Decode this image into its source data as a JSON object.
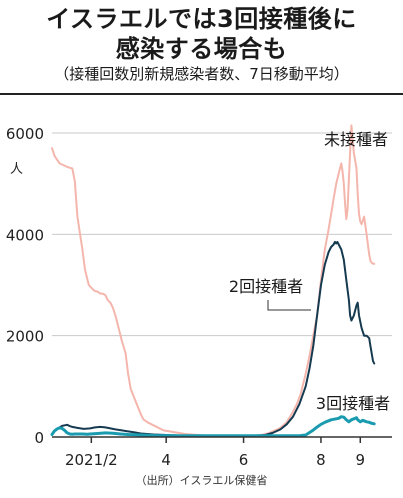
{
  "title_line1": "イスラエルでは3回接種後に",
  "title_line2": "感染する場合も",
  "subtitle": "（接種回数別新規感染者数、7日移動平均）",
  "source": "（出所）イスラエル保健省",
  "chart_data": {
    "type": "line",
    "ylabel": "人",
    "ylim": [
      0,
      6000
    ],
    "yticks": [
      0,
      2000,
      4000,
      6000
    ],
    "xlim": [
      0,
      268
    ],
    "xticks": [
      {
        "x": 31,
        "label": "2021/2"
      },
      {
        "x": 90,
        "label": "4"
      },
      {
        "x": 151,
        "label": "6"
      },
      {
        "x": 212,
        "label": "8"
      },
      {
        "x": 243,
        "label": "9"
      }
    ],
    "grid": true,
    "series": [
      {
        "name": "未接種者",
        "color": "#f4b6ac",
        "x": [
          0,
          2,
          6,
          12,
          16,
          18,
          20,
          24,
          26,
          29,
          32,
          34,
          36,
          38,
          40,
          42,
          44,
          46,
          48,
          50,
          52,
          55,
          58,
          60,
          62,
          66,
          70,
          72,
          76,
          80,
          84,
          88,
          95,
          105,
          120,
          135,
          150,
          160,
          165,
          170,
          175,
          180,
          185,
          190,
          193,
          196,
          200,
          203,
          206,
          209,
          212,
          215,
          218,
          220,
          222,
          224,
          226,
          228,
          229,
          230,
          231,
          232,
          233,
          234,
          236,
          238,
          240,
          241,
          242,
          243,
          244,
          246,
          248,
          250,
          251,
          252,
          253,
          254
        ],
        "values": [
          5700,
          5550,
          5400,
          5330,
          5300,
          5050,
          4350,
          3700,
          3300,
          3000,
          2920,
          2880,
          2870,
          2830,
          2830,
          2800,
          2700,
          2650,
          2550,
          2400,
          2200,
          1900,
          1650,
          1250,
          950,
          700,
          450,
          350,
          280,
          230,
          180,
          130,
          100,
          60,
          30,
          25,
          20,
          30,
          40,
          70,
          120,
          180,
          290,
          500,
          650,
          850,
          1250,
          1600,
          2000,
          2400,
          3100,
          3700,
          4100,
          4400,
          4700,
          5000,
          5200,
          5400,
          5250,
          5000,
          4600,
          4300,
          4500,
          5100,
          6150,
          5600,
          5300,
          4800,
          4400,
          4250,
          4200,
          4350,
          4000,
          3600,
          3480,
          3440,
          3420,
          3420
        ]
      },
      {
        "name": "2回接種者",
        "color": "#163a50",
        "x": [
          0,
          2,
          4,
          6,
          8,
          10,
          12,
          14,
          16,
          20,
          25,
          30,
          34,
          38,
          42,
          46,
          50,
          55,
          60,
          65,
          70,
          80,
          90,
          100,
          110,
          120,
          130,
          140,
          150,
          160,
          168,
          174,
          180,
          185,
          190,
          195,
          200,
          203,
          206,
          209,
          212,
          215,
          218,
          220,
          222,
          223,
          224,
          225,
          226,
          228,
          230,
          232,
          234,
          235,
          236,
          238,
          240,
          241,
          242,
          244,
          246,
          248,
          250,
          251,
          252,
          253,
          254
        ],
        "values": [
          60,
          120,
          160,
          190,
          220,
          230,
          240,
          215,
          200,
          180,
          160,
          170,
          190,
          200,
          190,
          170,
          150,
          130,
          110,
          90,
          70,
          50,
          40,
          30,
          25,
          20,
          20,
          20,
          20,
          25,
          40,
          80,
          150,
          250,
          400,
          650,
          1000,
          1350,
          1800,
          2400,
          3000,
          3400,
          3650,
          3750,
          3800,
          3850,
          3820,
          3850,
          3800,
          3700,
          3500,
          3100,
          2700,
          2400,
          2300,
          2400,
          2600,
          2650,
          2400,
          2150,
          2000,
          2000,
          1950,
          1800,
          1650,
          1500,
          1450
        ]
      },
      {
        "name": "3回接種者",
        "color": "#1a9bb0",
        "x": [
          0,
          2,
          4,
          6,
          8,
          10,
          12,
          14,
          16,
          18,
          20,
          24,
          28,
          30,
          36,
          42,
          48,
          54,
          60,
          70,
          80,
          100,
          120,
          140,
          160,
          180,
          195,
          200,
          205,
          208,
          212,
          216,
          220,
          224,
          226,
          228,
          230,
          232,
          234,
          236,
          238,
          240,
          241,
          242,
          243,
          245,
          248,
          250,
          252,
          254
        ],
        "values": [
          50,
          120,
          160,
          180,
          170,
          130,
          80,
          60,
          55,
          60,
          60,
          60,
          55,
          60,
          70,
          80,
          75,
          60,
          50,
          40,
          30,
          25,
          25,
          25,
          25,
          25,
          25,
          40,
          120,
          180,
          250,
          300,
          340,
          360,
          370,
          400,
          390,
          340,
          300,
          340,
          360,
          380,
          340,
          320,
          300,
          330,
          300,
          290,
          270,
          260
        ]
      }
    ],
    "annotations": [
      {
        "text": "未接種者",
        "series": 0
      },
      {
        "text": "2回接種者",
        "series": 1
      },
      {
        "text": "3回接種者",
        "series": 2
      }
    ]
  }
}
